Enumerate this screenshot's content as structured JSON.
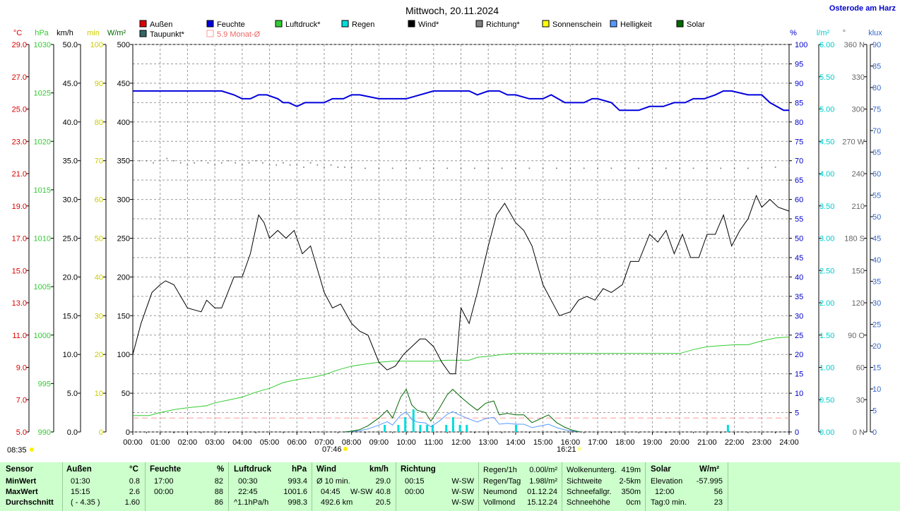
{
  "header": {
    "title": "Mittwoch, 20.11.2024",
    "location": "Osterode am Harz"
  },
  "legend": [
    {
      "label": "Außen",
      "color": "#dd0000"
    },
    {
      "label": "Feuchte",
      "color": "#0000dd"
    },
    {
      "label": "Luftdruck*",
      "color": "#33cc33"
    },
    {
      "label": "Regen",
      "color": "#00dddd"
    },
    {
      "label": "Wind*",
      "color": "#000000"
    },
    {
      "label": "Richtung*",
      "color": "#808080"
    },
    {
      "label": "Sonnenschein",
      "color": "#ffff00"
    },
    {
      "label": "Helligkeit",
      "color": "#5599ff"
    },
    {
      "label": "Solar",
      "color": "#006600"
    },
    {
      "label": "Taupunkt*",
      "color": "#336666"
    },
    {
      "label": "5.9 Monat-Ø",
      "color": "#ff9999",
      "hollow": true
    }
  ],
  "axis_units": {
    "temp": "°C",
    "pressure": "hPa",
    "wind": "km/h",
    "sun": "min",
    "solar": "W/m²",
    "humidity": "%",
    "rain": "l/m²",
    "direction": "°",
    "light": "klux"
  },
  "sun_times": {
    "sunrise_label": "08:35",
    "civil_start": "07:46",
    "sunset": "16:21"
  },
  "chart_data": {
    "type": "line",
    "x_unit": "time of day",
    "x_range": [
      "00:00",
      "24:00"
    ],
    "x_ticks": [
      "00:00",
      "01:00",
      "02:00",
      "03:00",
      "04:00",
      "05:00",
      "06:00",
      "07:00",
      "08:00",
      "09:00",
      "10:00",
      "11:00",
      "12:00",
      "13:00",
      "14:00",
      "15:00",
      "16:00",
      "17:00",
      "18:00",
      "19:00",
      "20:00",
      "21:00",
      "22:00",
      "23:00",
      "24:00"
    ],
    "grid": true,
    "axes": {
      "temp_ticks": [
        "29.0",
        "27.0",
        "25.0",
        "23.0",
        "21.0",
        "19.0",
        "17.0",
        "15.0",
        "13.0",
        "11.0",
        "9.0",
        "7.0",
        "5.0"
      ],
      "pressure_ticks": [
        "1030",
        "1025",
        "1020",
        "1015",
        "1010",
        "1005",
        "1000",
        "995",
        "990"
      ],
      "wind_ticks": [
        "50.0",
        "45.0",
        "40.0",
        "35.0",
        "30.0",
        "25.0",
        "20.0",
        "15.0",
        "10.0",
        "5.0",
        "0.0"
      ],
      "sun_ticks": [
        "100",
        "90",
        "80",
        "70",
        "60",
        "50",
        "40",
        "30",
        "20",
        "10",
        "0"
      ],
      "solar_ticks": [
        "500",
        "450",
        "400",
        "350",
        "300",
        "250",
        "200",
        "150",
        "100",
        "50",
        "0"
      ],
      "humidity_ticks": [
        "100",
        "95",
        "90",
        "85",
        "80",
        "75",
        "70",
        "65",
        "60",
        "55",
        "50",
        "45",
        "40",
        "35",
        "30",
        "25",
        "20",
        "15",
        "10",
        "5",
        "0"
      ],
      "rain_ticks": [
        "6.00",
        "5.50",
        "5.00",
        "4.50",
        "4.00",
        "3.50",
        "3.00",
        "2.50",
        "2.00",
        "1.50",
        "1.00",
        "0.50",
        "0.00"
      ],
      "direction_ticks": [
        "360 N",
        "330",
        "300",
        "270 W",
        "240",
        "210",
        "180 S",
        "150",
        "120",
        "90 O",
        "60",
        "30",
        "0 N"
      ],
      "light_ticks": [
        "90",
        "85",
        "80",
        "75",
        "70",
        "65",
        "60",
        "55",
        "50",
        "45",
        "40",
        "35",
        "30",
        "25",
        "20",
        "15",
        "10",
        "5",
        "0"
      ]
    },
    "series": [
      {
        "name": "Feuchte",
        "unit": "%",
        "color": "#0000dd",
        "x": [
          0,
          1,
          2,
          3,
          3.25,
          3.7,
          4.0,
          4.3,
          4.6,
          4.9,
          5.3,
          5.5,
          5.7,
          6.0,
          6.3,
          7.0,
          7.3,
          7.7,
          8.0,
          8.3,
          9.0,
          9.3,
          9.6,
          10.0,
          11.0,
          12.0,
          12.3,
          12.6,
          13.0,
          13.4,
          13.7,
          14.0,
          14.5,
          15.0,
          15.3,
          15.8,
          16.0,
          16.5,
          16.8,
          17.0,
          17.5,
          17.8,
          18.1,
          18.5,
          18.9,
          19.4,
          19.8,
          20.2,
          20.5,
          20.9,
          21.3,
          21.6,
          21.9,
          22.5,
          22.7,
          23.0,
          23.3,
          23.8,
          24.0
        ],
        "values": [
          88,
          88,
          88,
          88,
          88,
          87,
          86,
          86,
          87,
          87,
          86,
          85,
          85,
          84,
          85,
          85,
          86,
          86,
          87,
          87,
          86,
          86,
          86,
          86,
          88,
          88,
          88,
          87,
          88,
          88,
          87,
          87,
          86,
          86,
          87,
          85,
          85,
          85,
          86,
          86,
          85,
          83,
          83,
          83,
          84,
          84,
          85,
          85,
          86,
          86,
          87,
          88,
          88,
          87,
          87,
          87,
          85,
          83,
          83
        ]
      },
      {
        "name": "Richtung*",
        "unit": "°",
        "color": "#808080",
        "style": "dotted",
        "x": [
          0,
          0.25,
          0.5,
          0.75,
          1,
          1.25,
          1.5,
          1.75,
          2,
          2.25,
          2.5,
          2.75,
          3,
          3.25,
          3.5,
          3.75,
          4,
          4.25,
          4.5,
          4.75,
          5,
          5.25,
          5.5,
          5.75,
          6,
          6.25,
          6.5,
          6.75,
          7,
          7.25,
          7.5,
          7.75,
          8,
          8.5,
          9,
          9.5,
          10,
          10.5,
          11,
          11.5,
          12,
          12.5,
          13,
          13.5,
          14,
          14.5,
          15,
          15.5,
          16,
          16.5,
          17,
          17.5,
          18,
          18.5,
          19,
          19.5,
          20,
          20.5,
          21,
          21.5,
          22,
          22.5,
          23,
          23.5,
          24
        ],
        "values": [
          250,
          252,
          252,
          250,
          252,
          254,
          252,
          250,
          248,
          250,
          252,
          250,
          248,
          250,
          252,
          250,
          248,
          250,
          252,
          250,
          248,
          248,
          250,
          248,
          248,
          246,
          250,
          248,
          246,
          248,
          246,
          246,
          246,
          245,
          245,
          245,
          245,
          245,
          245,
          245,
          245,
          245,
          245,
          245,
          245,
          245,
          245,
          245,
          245,
          245,
          245,
          245,
          245,
          245,
          245,
          245,
          245,
          245,
          245,
          245,
          245,
          245,
          246,
          246,
          247
        ]
      },
      {
        "name": "Wind*",
        "unit": "km/h",
        "color": "#000000",
        "x": [
          0,
          0.3,
          0.7,
          1.0,
          1.2,
          1.5,
          2.0,
          2.5,
          2.7,
          3.0,
          3.25,
          3.7,
          4.0,
          4.3,
          4.6,
          4.8,
          5.0,
          5.3,
          5.6,
          5.9,
          6.2,
          6.5,
          7.0,
          7.3,
          7.6,
          8.0,
          8.3,
          8.6,
          9.0,
          9.3,
          9.6,
          9.9,
          10.2,
          10.5,
          10.7,
          11.0,
          11.3,
          11.6,
          11.8,
          12.0,
          12.3,
          12.6,
          13.0,
          13.3,
          13.6,
          14.0,
          14.3,
          14.6,
          15.0,
          15.3,
          15.6,
          16.0,
          16.3,
          16.6,
          16.9,
          17.2,
          17.5,
          17.9,
          18.2,
          18.5,
          18.9,
          19.2,
          19.5,
          19.8,
          20.1,
          20.4,
          20.7,
          21.0,
          21.3,
          21.6,
          21.9,
          22.2,
          22.5,
          22.8,
          23.0,
          23.3,
          23.6,
          24.0
        ],
        "values": [
          10,
          14,
          18,
          19,
          19.5,
          19,
          16,
          15.5,
          17,
          16,
          16,
          20,
          20,
          23,
          28,
          27,
          25,
          26,
          25,
          26,
          23,
          24,
          18,
          16,
          16.5,
          14,
          13,
          12.5,
          9,
          8,
          8.5,
          10,
          11,
          12,
          12,
          11,
          9,
          7.5,
          7.5,
          16,
          14,
          18,
          24,
          28,
          29.5,
          27,
          26,
          24,
          19,
          17,
          15,
          15.5,
          17,
          17.5,
          17,
          18.5,
          18,
          19,
          22,
          22,
          25.5,
          24.5,
          26,
          23,
          25.5,
          22.5,
          22.5,
          25.5,
          25.5,
          28,
          24,
          26,
          27.5,
          30.5,
          29,
          30,
          29,
          28.5
        ]
      },
      {
        "name": "Luftdruck*",
        "unit": "hPa",
        "color": "#33cc33",
        "x": [
          0,
          0.6,
          1.0,
          1.5,
          2.0,
          2.7,
          3.0,
          3.5,
          4.0,
          4.5,
          5.0,
          5.5,
          6.0,
          6.5,
          7.0,
          7.5,
          8.0,
          8.5,
          9.0,
          9.5,
          10.0,
          10.5,
          11.0,
          11.5,
          12.0,
          12.3,
          12.6,
          13.0,
          13.5,
          14.0,
          14.5,
          15.0,
          15.5,
          16.0,
          16.5,
          17.0,
          18.0,
          19.0,
          20.0,
          20.5,
          21.0,
          21.5,
          22.0,
          22.5,
          23.0,
          23.5,
          24.0
        ],
        "values": [
          991.7,
          991.7,
          992.0,
          992.3,
          992.5,
          992.7,
          993.0,
          993.3,
          993.6,
          994.1,
          994.5,
          995.1,
          995.4,
          995.6,
          995.9,
          996.4,
          996.8,
          997.0,
          997.2,
          997.3,
          997.3,
          997.3,
          997.3,
          997.4,
          997.4,
          997.4,
          997.7,
          997.8,
          998.0,
          998.1,
          998.1,
          998.1,
          998.1,
          998.1,
          998.1,
          998.1,
          998.1,
          998.1,
          998.1,
          998.5,
          998.8,
          998.9,
          999.0,
          999.0,
          999.4,
          999.7,
          999.8
        ]
      },
      {
        "name": "Solar",
        "unit": "W/m²",
        "color": "#006600",
        "x": [
          7.75,
          8.0,
          8.3,
          8.6,
          9.0,
          9.3,
          9.5,
          9.8,
          10.0,
          10.2,
          10.4,
          10.7,
          10.9,
          11.2,
          11.5,
          11.7,
          12.0,
          12.3,
          12.6,
          12.9,
          13.2,
          13.4,
          13.7,
          14.0,
          14.3,
          14.6,
          14.9,
          15.2,
          15.5,
          15.8,
          16.1,
          16.35
        ],
        "values": [
          0,
          1,
          3,
          8,
          18,
          28,
          18,
          45,
          55,
          35,
          28,
          25,
          14,
          30,
          48,
          55,
          45,
          36,
          28,
          37,
          40,
          22,
          24,
          22,
          22,
          12,
          17,
          22,
          12,
          6,
          2,
          0
        ]
      },
      {
        "name": "Helligkeit",
        "unit": "klux",
        "color": "#5599ff",
        "x": [
          7.75,
          8.0,
          8.3,
          8.6,
          9.0,
          9.3,
          9.5,
          9.8,
          10.0,
          10.2,
          10.4,
          10.7,
          10.9,
          11.2,
          11.5,
          11.7,
          12.0,
          12.3,
          12.6,
          12.9,
          13.2,
          13.4,
          13.7,
          14.0,
          14.3,
          14.6,
          14.9,
          15.2,
          15.5,
          15.8,
          16.1,
          16.35
        ],
        "values": [
          0,
          0.1,
          0.3,
          0.7,
          1.6,
          2.4,
          1.6,
          3.9,
          4.7,
          2.9,
          2.3,
          2.1,
          1.2,
          2.5,
          4.1,
          4.7,
          3.8,
          3.0,
          2.3,
          3.1,
          3.4,
          1.8,
          2.0,
          1.8,
          1.8,
          1.0,
          1.4,
          1.8,
          1.0,
          0.5,
          0.2,
          0
        ]
      }
    ],
    "rain_bars": {
      "unit": "l/m²",
      "color": "#00dddd",
      "x": [
        9.2,
        9.7,
        9.95,
        10.25,
        10.5,
        10.75,
        10.95,
        11.45,
        11.7,
        11.95,
        12.2,
        14.0,
        21.75
      ],
      "values": [
        0.11,
        0.11,
        0.23,
        0.35,
        0.11,
        0.11,
        0.11,
        0.11,
        0.23,
        0.11,
        0.11,
        0.11,
        0.11
      ]
    },
    "monthly_avg_line": {
      "label": "5.9 Monat-Ø",
      "value": 5.9,
      "unit": "°C",
      "color": "#ff9999"
    }
  },
  "summary": {
    "row_labels": [
      "Sensor",
      "MinWert",
      "MaxWert",
      "Durchschnitt"
    ],
    "aussen": {
      "title": "Außen",
      "unit": "°C",
      "min_time": "01:30",
      "min": "0.8",
      "max_time": "15:15",
      "max": "2.6",
      "avg_note": "( - 4.35 )",
      "avg": "1.60"
    },
    "feuchte": {
      "title": "Feuchte",
      "unit": "%",
      "min_time": "17:00",
      "min": "82",
      "max_time": "00:00",
      "max": "88",
      "avg": "86"
    },
    "luftdruck": {
      "title": "Luftdruck",
      "unit": "hPa",
      "min_time": "00:30",
      "min": "993.4",
      "max_time": "22:45",
      "max": "1001.6",
      "avg_note": "^1.1hPa/h",
      "avg": "998.3"
    },
    "wind": {
      "title": "Wind",
      "unit": "km/h",
      "r1_label": "Ø 10 min.",
      "r1_val": "29.0",
      "r2_time": "04:45",
      "r2_dir": "W-SW",
      "r2_val": "40.8",
      "r3_label": "492.6 km",
      "r3_val": "20.5"
    },
    "richtung": {
      "title": "Richtung",
      "r1_time": "00:15",
      "r1_dir": "W-SW",
      "r2_time": "00:00",
      "r2_dir": "W-SW",
      "r3_dir": "W-SW"
    },
    "regen": {
      "r0_label": "Regen/1h",
      "r0_val": "0.00l/m²",
      "r1_label": "Regen/Tag",
      "r1_val": "1.98l/m²",
      "r2_label": "Neumond",
      "r2_val": "01.12.24",
      "r3_label": "Vollmond",
      "r3_val": "15.12.24"
    },
    "wolken": {
      "r0_label": "Wolkenunterg.",
      "r0_val": "419m",
      "r1_label": "Sichtweite",
      "r1_val": "2-5km",
      "r2_label": "Schneefallgr.",
      "r2_val": "350m",
      "r3_label": "Schneehöhe",
      "r3_val": "0cm"
    },
    "solar": {
      "title": "Solar",
      "unit": "W/m²",
      "r1_label": "Elevation",
      "r1_val": "-57.995",
      "r2_time": "12:00",
      "r2_val": "56",
      "r3_label": "Tag:0 min.",
      "r3_val": "23"
    }
  }
}
